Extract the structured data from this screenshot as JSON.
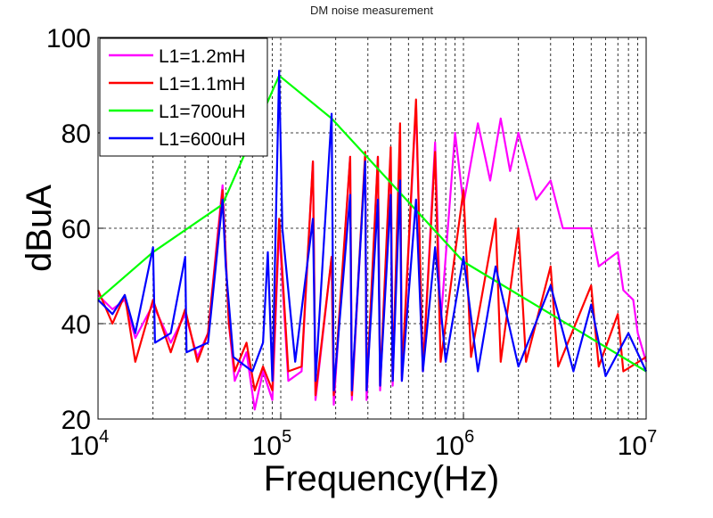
{
  "chart_data": {
    "type": "line",
    "title": "DM noise measurement",
    "xlabel": "Frequency(Hz)",
    "ylabel": "dBuA",
    "xscale": "log",
    "xlim": [
      10000,
      10000000
    ],
    "ylim": [
      20,
      100
    ],
    "xticks": [
      10000,
      100000,
      1000000,
      10000000
    ],
    "xtick_labels": [
      {
        "base": "10",
        "exp": "4"
      },
      {
        "base": "10",
        "exp": "5"
      },
      {
        "base": "10",
        "exp": "6"
      },
      {
        "base": "10",
        "exp": "7"
      }
    ],
    "yticks": [
      20,
      40,
      60,
      80,
      100
    ],
    "ytick_labels": [
      "20",
      "40",
      "60",
      "80",
      "100"
    ],
    "grid": true,
    "legend_position": "top-left",
    "series": [
      {
        "name": "L1=1.2mH",
        "color": "#ff00ff",
        "points": [
          [
            10000,
            46
          ],
          [
            12000,
            43
          ],
          [
            14000,
            45
          ],
          [
            16000,
            37
          ],
          [
            20000,
            44
          ],
          [
            25000,
            36
          ],
          [
            30000,
            42
          ],
          [
            35000,
            33
          ],
          [
            40000,
            38
          ],
          [
            48000,
            69
          ],
          [
            52000,
            40
          ],
          [
            56000,
            28
          ],
          [
            65000,
            34
          ],
          [
            72000,
            22
          ],
          [
            80000,
            30
          ],
          [
            90000,
            24
          ],
          [
            98000,
            60
          ],
          [
            110000,
            28
          ],
          [
            130000,
            30
          ],
          [
            150000,
            74
          ],
          [
            155000,
            24
          ],
          [
            190000,
            54
          ],
          [
            195000,
            23
          ],
          [
            240000,
            75
          ],
          [
            245000,
            24
          ],
          [
            290000,
            75
          ],
          [
            295000,
            24
          ],
          [
            340000,
            75
          ],
          [
            350000,
            26
          ],
          [
            400000,
            76
          ],
          [
            410000,
            27
          ],
          [
            450000,
            80
          ],
          [
            460000,
            28
          ],
          [
            550000,
            86
          ],
          [
            600000,
            30
          ],
          [
            700000,
            78
          ],
          [
            750000,
            40
          ],
          [
            900000,
            80
          ],
          [
            1000000,
            65
          ],
          [
            1200000,
            82
          ],
          [
            1400000,
            70
          ],
          [
            1600000,
            83
          ],
          [
            1800000,
            72
          ],
          [
            2000000,
            80
          ],
          [
            2500000,
            66
          ],
          [
            3000000,
            70
          ],
          [
            3500000,
            60
          ],
          [
            5000000,
            60
          ],
          [
            5500000,
            52
          ],
          [
            7000000,
            55
          ],
          [
            7500000,
            47
          ],
          [
            8500000,
            45
          ],
          [
            9000000,
            38
          ],
          [
            10000000,
            32
          ]
        ]
      },
      {
        "name": "L1=1.1mH",
        "color": "#ff0000",
        "points": [
          [
            10000,
            47
          ],
          [
            12000,
            40
          ],
          [
            14000,
            46
          ],
          [
            16000,
            32
          ],
          [
            20000,
            45
          ],
          [
            25000,
            34
          ],
          [
            30000,
            43
          ],
          [
            35000,
            32
          ],
          [
            40000,
            38
          ],
          [
            48000,
            68
          ],
          [
            52000,
            40
          ],
          [
            56000,
            30
          ],
          [
            65000,
            36
          ],
          [
            72000,
            26
          ],
          [
            80000,
            31
          ],
          [
            90000,
            26
          ],
          [
            98000,
            62
          ],
          [
            110000,
            30
          ],
          [
            130000,
            31
          ],
          [
            150000,
            74
          ],
          [
            155000,
            25
          ],
          [
            190000,
            54
          ],
          [
            195000,
            25
          ],
          [
            240000,
            75
          ],
          [
            245000,
            25
          ],
          [
            290000,
            76
          ],
          [
            295000,
            26
          ],
          [
            340000,
            75
          ],
          [
            350000,
            27
          ],
          [
            400000,
            77
          ],
          [
            410000,
            28
          ],
          [
            450000,
            82
          ],
          [
            460000,
            29
          ],
          [
            550000,
            87
          ],
          [
            600000,
            30
          ],
          [
            700000,
            76
          ],
          [
            750000,
            32
          ],
          [
            1000000,
            68
          ],
          [
            1100000,
            33
          ],
          [
            1500000,
            62
          ],
          [
            1600000,
            32
          ],
          [
            2000000,
            60
          ],
          [
            2200000,
            32
          ],
          [
            3000000,
            52
          ],
          [
            3300000,
            31
          ],
          [
            5000000,
            48
          ],
          [
            5500000,
            31
          ],
          [
            7000000,
            42
          ],
          [
            7500000,
            30
          ],
          [
            10000000,
            33
          ]
        ]
      },
      {
        "name": "L1=700uH",
        "color": "#00ff00",
        "points": [
          [
            10000,
            45
          ],
          [
            20000,
            55
          ],
          [
            48000,
            65
          ],
          [
            98000,
            92
          ],
          [
            190000,
            83
          ],
          [
            1000000,
            53
          ],
          [
            10000000,
            30
          ]
        ]
      },
      {
        "name": "L1=600uH",
        "color": "#0000ff",
        "points": [
          [
            10000,
            45
          ],
          [
            12000,
            42
          ],
          [
            14000,
            46
          ],
          [
            16000,
            38
          ],
          [
            20000,
            56
          ],
          [
            20500,
            36
          ],
          [
            25000,
            38
          ],
          [
            30000,
            54
          ],
          [
            30500,
            34
          ],
          [
            40000,
            36
          ],
          [
            48000,
            66
          ],
          [
            50000,
            52
          ],
          [
            55000,
            33
          ],
          [
            70000,
            30
          ],
          [
            80000,
            36
          ],
          [
            85000,
            55
          ],
          [
            90000,
            28
          ],
          [
            98000,
            93
          ],
          [
            102000,
            60
          ],
          [
            120000,
            32
          ],
          [
            150000,
            62
          ],
          [
            155000,
            28
          ],
          [
            190000,
            84
          ],
          [
            195000,
            26
          ],
          [
            240000,
            67
          ],
          [
            245000,
            26
          ],
          [
            290000,
            74
          ],
          [
            295000,
            26
          ],
          [
            340000,
            66
          ],
          [
            350000,
            27
          ],
          [
            400000,
            67
          ],
          [
            410000,
            28
          ],
          [
            450000,
            70
          ],
          [
            460000,
            28
          ],
          [
            550000,
            66
          ],
          [
            600000,
            30
          ],
          [
            700000,
            56
          ],
          [
            800000,
            32
          ],
          [
            1000000,
            54
          ],
          [
            1200000,
            30
          ],
          [
            1500000,
            52
          ],
          [
            2000000,
            31
          ],
          [
            3000000,
            48
          ],
          [
            4000000,
            30
          ],
          [
            5000000,
            44
          ],
          [
            6000000,
            29
          ],
          [
            8000000,
            38
          ],
          [
            10000000,
            30
          ]
        ]
      }
    ]
  }
}
